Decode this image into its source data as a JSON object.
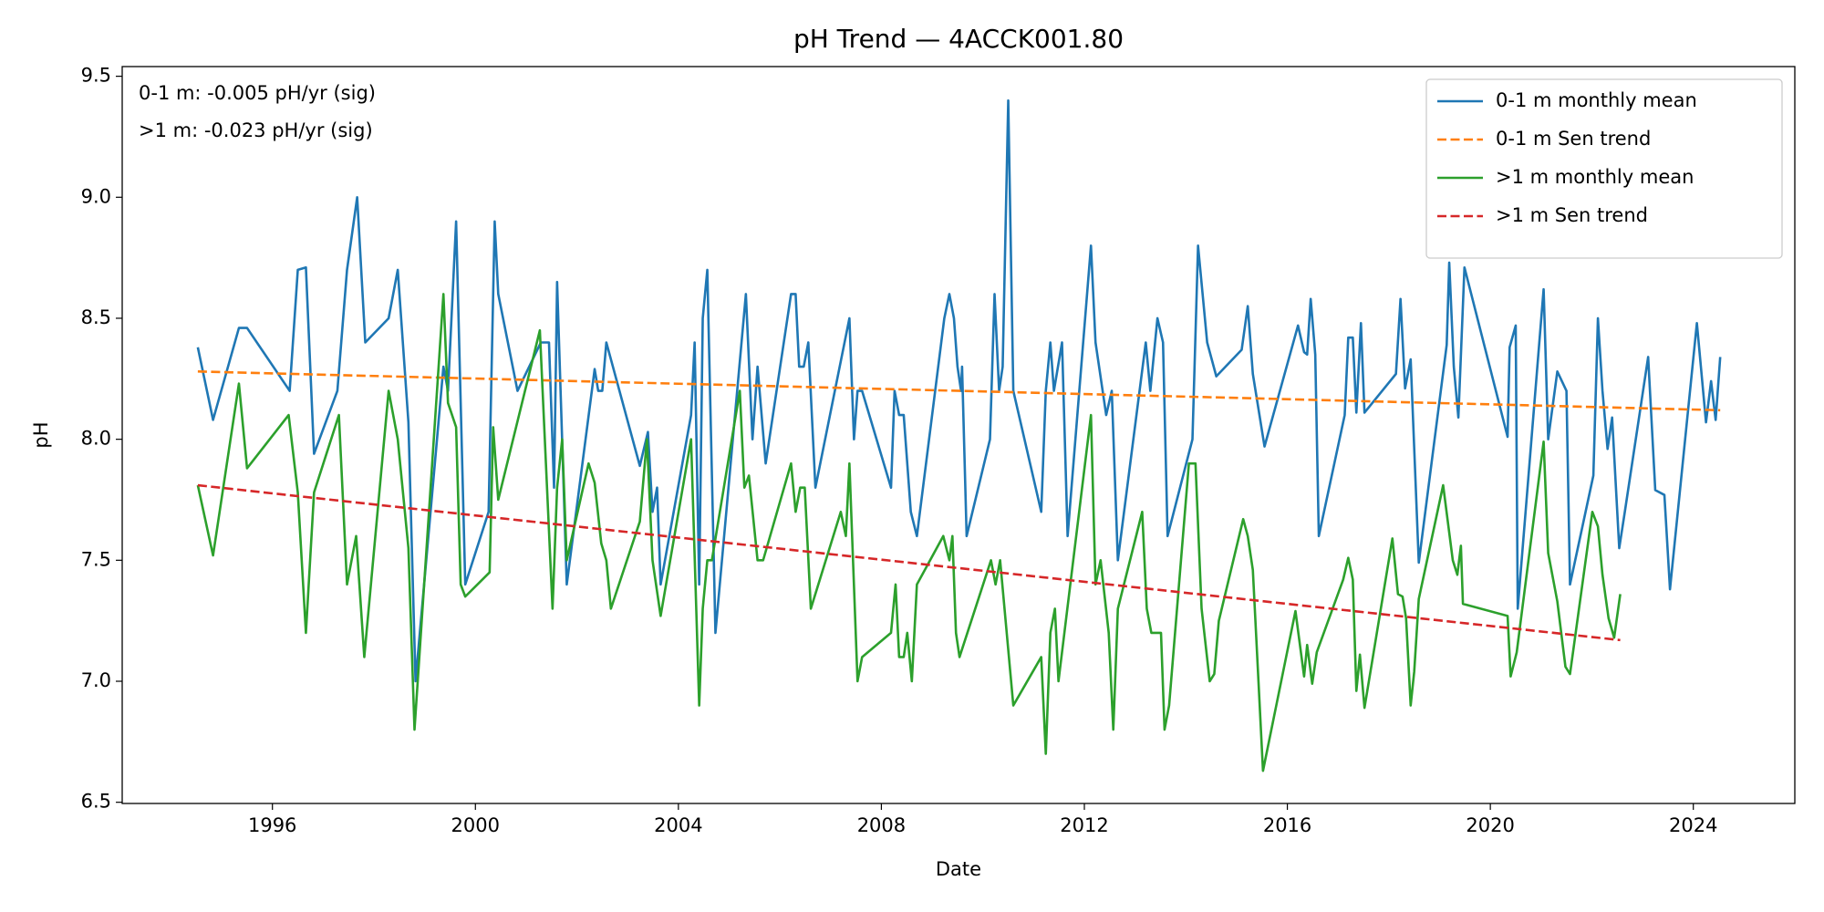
{
  "chart_data": {
    "type": "line",
    "title": "pH Trend — 4ACCK001.80",
    "xlabel": "Date",
    "ylabel": "pH",
    "annotations": [
      "0-1 m: -0.005 pH/yr (sig)",
      ">1 m: -0.023 pH/yr (sig)"
    ],
    "xlim": [
      1993.04,
      2026.0
    ],
    "xticks": [
      1996,
      2000,
      2004,
      2008,
      2012,
      2016,
      2020,
      2024
    ],
    "ylim": [
      6.495,
      9.54
    ],
    "yticks": [
      6.5,
      {
        "value": 7.0,
        "label": "7.0"
      },
      7.5,
      {
        "value": 8.0,
        "label": "8.0"
      },
      8.5,
      {
        "value": 9.0,
        "label": "9.0"
      },
      9.5
    ],
    "legend": "upper right",
    "grid": false,
    "series": [
      {
        "name": "0-1 m monthly mean",
        "color": "#1f77b4",
        "dashed": false,
        "x": [
          1994.53,
          1994.83,
          1995.34,
          1995.5,
          1996.34,
          1996.5,
          1996.66,
          1996.82,
          1997.28,
          1997.47,
          1997.67,
          1997.83,
          1998.29,
          1998.47,
          1998.68,
          1998.82,
          1999.37,
          1999.46,
          1999.62,
          1999.8,
          2000.26,
          2000.38,
          2000.45,
          2000.83,
          2001.29,
          2001.45,
          2001.55,
          2001.61,
          2001.8,
          2002.35,
          2002.42,
          2002.5,
          2002.58,
          2003.24,
          2003.4,
          2003.49,
          2003.58,
          2003.65,
          2004.25,
          2004.32,
          2004.41,
          2004.48,
          2004.57,
          2004.73,
          2005.33,
          2005.46,
          2005.56,
          2005.72,
          2006.22,
          2006.31,
          2006.38,
          2006.47,
          2006.56,
          2006.7,
          2007.37,
          2007.46,
          2007.53,
          2007.62,
          2008.19,
          2008.26,
          2008.35,
          2008.44,
          2008.58,
          2008.7,
          2009.24,
          2009.34,
          2009.43,
          2009.5,
          2009.57,
          2009.59,
          2009.68,
          2010.14,
          2010.23,
          2010.32,
          2010.39,
          2010.5,
          2010.6,
          2011.15,
          2011.24,
          2011.33,
          2011.4,
          2011.56,
          2011.67,
          2012.13,
          2012.22,
          2012.43,
          2012.54,
          2012.66,
          2013.21,
          2013.3,
          2013.44,
          2013.55,
          2013.64,
          2014.13,
          2014.24,
          2014.42,
          2014.6,
          2015.1,
          2015.22,
          2015.32,
          2015.55,
          2016.21,
          2016.33,
          2016.39,
          2016.46,
          2016.55,
          2016.62,
          2017.13,
          2017.2,
          2017.29,
          2017.36,
          2017.45,
          2017.52,
          2018.14,
          2018.23,
          2018.32,
          2018.43,
          2018.59,
          2019.14,
          2019.19,
          2019.28,
          2019.37,
          2019.49,
          2020.34,
          2020.38,
          2020.5,
          2020.54,
          2021.05,
          2021.14,
          2021.32,
          2021.5,
          2021.57,
          2022.03,
          2022.12,
          2022.21,
          2022.31,
          2022.4,
          2022.54,
          2022.65,
          2023.11,
          2023.25,
          2023.43,
          2023.54,
          2024.07,
          2024.25,
          2024.35,
          2024.44,
          2024.53
        ],
        "values": [
          8.38,
          8.08,
          8.46,
          8.46,
          8.2,
          8.7,
          8.71,
          7.94,
          8.2,
          8.7,
          9.0,
          8.4,
          8.5,
          8.7,
          8.07,
          7.0,
          8.3,
          8.2,
          8.9,
          7.4,
          7.7,
          8.9,
          8.6,
          8.2,
          8.4,
          8.4,
          7.8,
          8.65,
          7.4,
          8.29,
          8.2,
          8.2,
          8.4,
          7.89,
          8.03,
          7.7,
          7.8,
          7.4,
          8.1,
          8.4,
          7.4,
          8.5,
          8.7,
          7.2,
          8.6,
          8.0,
          8.3,
          7.9,
          8.6,
          8.6,
          8.3,
          8.3,
          8.4,
          7.8,
          8.5,
          8.0,
          8.2,
          8.2,
          7.8,
          8.2,
          8.1,
          8.1,
          7.7,
          7.6,
          8.5,
          8.6,
          8.5,
          8.3,
          8.2,
          8.3,
          7.6,
          8.0,
          8.6,
          8.2,
          8.3,
          9.4,
          8.2,
          7.7,
          8.2,
          8.4,
          8.2,
          8.4,
          7.6,
          8.8,
          8.4,
          8.1,
          8.2,
          7.5,
          8.4,
          8.2,
          8.5,
          8.4,
          7.6,
          8.0,
          8.8,
          8.4,
          8.26,
          8.37,
          8.55,
          8.27,
          7.97,
          8.47,
          8.36,
          8.35,
          8.58,
          8.35,
          7.6,
          8.1,
          8.42,
          8.42,
          8.11,
          8.48,
          8.11,
          8.27,
          8.58,
          8.21,
          8.33,
          7.49,
          8.39,
          8.73,
          8.3,
          8.09,
          8.71,
          8.01,
          8.38,
          8.47,
          7.3,
          8.62,
          8.0,
          8.28,
          8.2,
          7.4,
          7.85,
          8.5,
          8.2,
          7.96,
          8.09,
          7.55,
          7.7,
          8.34,
          7.79,
          7.77,
          7.38,
          8.48,
          8.07,
          8.24,
          8.08,
          8.34
        ]
      },
      {
        "name": "0-1 m Sen trend",
        "color": "#ff7f0e",
        "dashed": true,
        "x": [
          1994.53,
          2024.53
        ],
        "values": [
          8.28,
          8.12
        ]
      },
      {
        "name": ">1 m monthly mean",
        "color": "#2ca02c",
        "dashed": false,
        "x": [
          1994.53,
          1994.83,
          1995.34,
          1995.5,
          1996.32,
          1996.5,
          1996.66,
          1996.82,
          1997.31,
          1997.47,
          1997.65,
          1997.81,
          1998.29,
          1998.47,
          1998.68,
          1998.8,
          1999.37,
          1999.46,
          1999.62,
          1999.71,
          1999.8,
          2000.28,
          2000.35,
          2000.45,
          2001.27,
          2001.52,
          2001.61,
          2001.71,
          2001.8,
          2002.23,
          2002.35,
          2002.48,
          2002.58,
          2002.67,
          2003.24,
          2003.38,
          2003.49,
          2003.65,
          2004.25,
          2004.41,
          2004.48,
          2004.57,
          2004.66,
          2005.21,
          2005.3,
          2005.39,
          2005.56,
          2005.67,
          2006.22,
          2006.31,
          2006.4,
          2006.49,
          2006.61,
          2007.2,
          2007.3,
          2007.37,
          2007.53,
          2007.62,
          2008.19,
          2008.28,
          2008.35,
          2008.44,
          2008.51,
          2008.6,
          2008.7,
          2009.22,
          2009.34,
          2009.4,
          2009.47,
          2009.54,
          2010.16,
          2010.25,
          2010.34,
          2010.6,
          2011.15,
          2011.24,
          2011.33,
          2011.42,
          2011.49,
          2012.13,
          2012.22,
          2012.32,
          2012.48,
          2012.57,
          2012.66,
          2013.14,
          2013.23,
          2013.32,
          2013.51,
          2013.58,
          2013.67,
          2014.06,
          2014.19,
          2014.31,
          2014.47,
          2014.56,
          2014.65,
          2015.13,
          2015.22,
          2015.32,
          2015.52,
          2016.16,
          2016.33,
          2016.39,
          2016.49,
          2016.58,
          2017.1,
          2017.2,
          2017.29,
          2017.36,
          2017.43,
          2017.52,
          2018.07,
          2018.18,
          2018.27,
          2018.34,
          2018.43,
          2018.5,
          2018.59,
          2019.07,
          2019.26,
          2019.35,
          2019.42,
          2019.46,
          2020.34,
          2020.4,
          2020.52,
          2021.05,
          2021.14,
          2021.32,
          2021.48,
          2021.57,
          2022.01,
          2022.12,
          2022.21,
          2022.33,
          2022.44,
          2022.56
        ],
        "values": [
          7.81,
          7.52,
          8.23,
          7.88,
          8.1,
          7.78,
          7.2,
          7.78,
          8.1,
          7.4,
          7.6,
          7.1,
          8.2,
          8.0,
          7.55,
          6.8,
          8.6,
          8.15,
          8.05,
          7.4,
          7.35,
          7.45,
          8.05,
          7.75,
          8.45,
          7.3,
          7.8,
          8.0,
          7.5,
          7.9,
          7.82,
          7.57,
          7.5,
          7.3,
          7.66,
          8.0,
          7.5,
          7.27,
          8.0,
          6.9,
          7.3,
          7.5,
          7.5,
          8.2,
          7.8,
          7.85,
          7.5,
          7.5,
          7.9,
          7.7,
          7.8,
          7.8,
          7.3,
          7.7,
          7.6,
          7.9,
          7.0,
          7.1,
          7.2,
          7.4,
          7.1,
          7.1,
          7.2,
          7.0,
          7.4,
          7.6,
          7.5,
          7.6,
          7.2,
          7.1,
          7.5,
          7.4,
          7.5,
          6.9,
          7.1,
          6.7,
          7.2,
          7.3,
          7.0,
          8.1,
          7.4,
          7.5,
          7.2,
          6.8,
          7.3,
          7.7,
          7.3,
          7.2,
          7.2,
          6.8,
          6.9,
          7.9,
          7.9,
          7.3,
          7.0,
          7.03,
          7.25,
          7.67,
          7.6,
          7.46,
          6.63,
          7.29,
          7.02,
          7.15,
          6.99,
          7.12,
          7.42,
          7.51,
          7.42,
          6.96,
          7.11,
          6.89,
          7.59,
          7.36,
          7.35,
          7.26,
          6.9,
          7.04,
          7.34,
          7.81,
          7.5,
          7.44,
          7.56,
          7.32,
          7.27,
          7.02,
          7.12,
          7.99,
          7.53,
          7.33,
          7.06,
          7.03,
          7.7,
          7.64,
          7.44,
          7.26,
          7.18,
          7.36
        ]
      },
      {
        "name": ">1 m Sen trend",
        "color": "#d62728",
        "dashed": true,
        "x": [
          1994.53,
          2022.56
        ],
        "values": [
          7.81,
          7.17
        ]
      }
    ]
  }
}
